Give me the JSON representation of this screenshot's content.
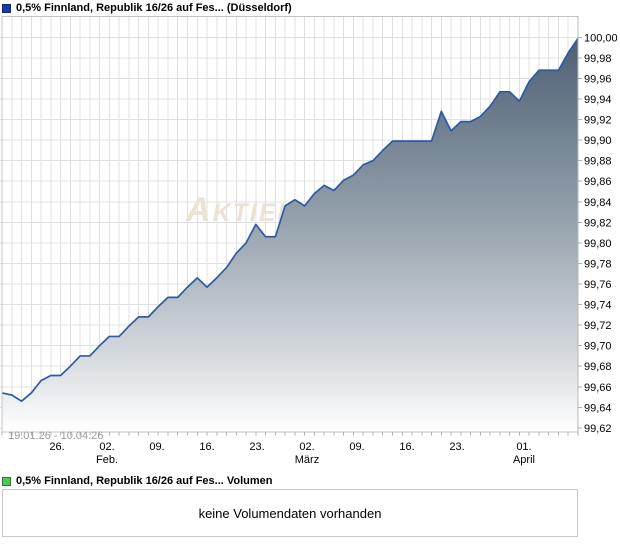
{
  "price_legend": {
    "label": "0,5% Finnland, Republik 16/26 auf Fes... (Düsseldorf)",
    "color": "#1d3aa0",
    "border": "#10266e"
  },
  "volume_legend": {
    "label": "0,5% Finnland, Republik 16/26 auf Fes... Volumen",
    "color": "#55c455",
    "border": "#2f7a2f"
  },
  "volume_panel": {
    "message": "keine Volumendaten vorhanden"
  },
  "watermark": "Aktien",
  "colors": {
    "line": "#2d5aa8",
    "area_top": "#4e6075",
    "area_mid": "#93a0ab",
    "area_low": "#d3d8dd",
    "area_bottom": "#ffffff",
    "grid": "#e0e0e0",
    "frame": "#c4c4c4",
    "axis": "#b8b8b8",
    "tick": "#b0b0b0",
    "watermark": "#eae3d2",
    "range_label": "#9c9c9c",
    "text": "#000000"
  },
  "chart_data": {
    "type": "area",
    "title": "0,5% Finnland, Republik 16/26 auf Fes... (Düsseldorf)",
    "range_label": "19.01.26 - 10.04.26",
    "xlabel": "",
    "ylabel": "",
    "grid": true,
    "legend_position": "top-left",
    "ylim": [
      99.616,
      100.0203
    ],
    "y_ticks": [
      {
        "value": 100.0,
        "label": "100,00"
      },
      {
        "value": 99.98,
        "label": "99,98"
      },
      {
        "value": 99.96,
        "label": "99,96"
      },
      {
        "value": 99.94,
        "label": "99,94"
      },
      {
        "value": 99.92,
        "label": "99,92"
      },
      {
        "value": 99.9,
        "label": "99,90"
      },
      {
        "value": 99.88,
        "label": "99,88"
      },
      {
        "value": 99.86,
        "label": "99,86"
      },
      {
        "value": 99.84,
        "label": "99,84"
      },
      {
        "value": 99.82,
        "label": "99,82"
      },
      {
        "value": 99.8,
        "label": "99,80"
      },
      {
        "value": 99.78,
        "label": "99,78"
      },
      {
        "value": 99.76,
        "label": "99,76"
      },
      {
        "value": 99.74,
        "label": "99,74"
      },
      {
        "value": 99.72,
        "label": "99,72"
      },
      {
        "value": 99.7,
        "label": "99,70"
      },
      {
        "value": 99.68,
        "label": "99,68"
      },
      {
        "value": 99.66,
        "label": "99,66"
      },
      {
        "value": 99.64,
        "label": "99,64"
      },
      {
        "value": 99.62,
        "label": "99,62"
      }
    ],
    "x_ticks": [
      {
        "label": "26.",
        "month": "",
        "pos": 0.0955
      },
      {
        "label": "02.",
        "month": "Feb.",
        "pos": 0.1823
      },
      {
        "label": "09.",
        "month": "",
        "pos": 0.2691
      },
      {
        "label": "16.",
        "month": "",
        "pos": 0.3559
      },
      {
        "label": "23.",
        "month": "",
        "pos": 0.4427
      },
      {
        "label": "02.",
        "month": "März",
        "pos": 0.5295
      },
      {
        "label": "09.",
        "month": "",
        "pos": 0.6163
      },
      {
        "label": "16.",
        "month": "",
        "pos": 0.7031
      },
      {
        "label": "23.",
        "month": "",
        "pos": 0.7899
      },
      {
        "label": "01.",
        "month": "April",
        "pos": 0.9062
      }
    ],
    "series": [
      {
        "name": "0,5% Finnland, Republik 16/26 auf Fes... (Düsseldorf)",
        "values": [
          99.654,
          99.652,
          99.646,
          99.654,
          99.666,
          99.671,
          99.671,
          99.68,
          99.69,
          99.69,
          99.7,
          99.709,
          99.709,
          99.719,
          99.728,
          99.728,
          99.738,
          99.747,
          99.747,
          99.757,
          99.766,
          99.757,
          99.766,
          99.776,
          99.79,
          99.8,
          99.818,
          99.806,
          99.806,
          99.836,
          99.842,
          99.836,
          99.848,
          99.856,
          99.851,
          99.861,
          99.866,
          99.876,
          99.88,
          99.89,
          99.899,
          99.899,
          99.899,
          99.899,
          99.899,
          99.928,
          99.909,
          99.918,
          99.918,
          99.923,
          99.933,
          99.947,
          99.947,
          99.938,
          99.957,
          99.968,
          99.968,
          99.968,
          99.985,
          99.999
        ]
      }
    ]
  }
}
